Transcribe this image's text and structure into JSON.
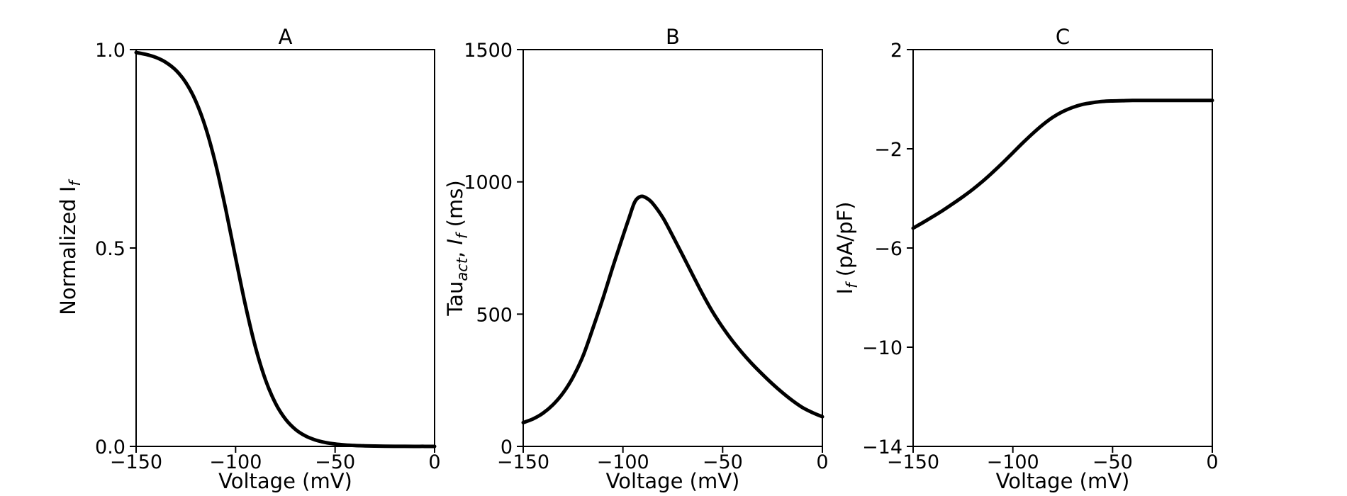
{
  "figure": {
    "background": "#ffffff",
    "axis_color": "#000000",
    "text_color": "#000000"
  },
  "chart_data": [
    {
      "type": "line",
      "title": "A",
      "xlabel": "Voltage (mV)",
      "ylabel_plain": "Normalized If",
      "ylabel_segments": [
        {
          "text": "Normalized I"
        },
        {
          "text": "f",
          "style": "sub"
        }
      ],
      "xlim": [
        -150,
        0
      ],
      "ylim": [
        0,
        1
      ],
      "xticks": {
        "values": [
          -150,
          -100,
          -50,
          0
        ],
        "labels": [
          "−150",
          "−100",
          "−50",
          "0"
        ]
      },
      "yticks": {
        "values": [
          0,
          0.5,
          1
        ],
        "labels": [
          "0.0",
          "0.5",
          "1.0"
        ]
      },
      "grid": false,
      "legend": "none",
      "series": [
        {
          "name": "normalized-if-activation",
          "color": "#000000",
          "width": 5,
          "x": [
            -150,
            -145,
            -140,
            -135,
            -130,
            -125,
            -120,
            -115,
            -110,
            -105,
            -100,
            -95,
            -90,
            -85,
            -80,
            -75,
            -70,
            -65,
            -60,
            -55,
            -50,
            -45,
            -40,
            -35,
            -30,
            -25,
            -20,
            -15,
            -10,
            -5,
            0
          ],
          "y": [
            0.9926,
            0.9879,
            0.9802,
            0.9677,
            0.9479,
            0.9168,
            0.8699,
            0.8022,
            0.7109,
            0.5987,
            0.475,
            0.3543,
            0.2497,
            0.168,
            0.1091,
            0.0691,
            0.0431,
            0.0266,
            0.0163,
            0.01,
            0.0061,
            0.0037,
            0.0022,
            0.0014,
            0.0008,
            0.0005,
            0.0003,
            0.0002,
            0.0001,
            0.0001,
            0.0
          ]
        }
      ]
    },
    {
      "type": "line",
      "title": "B",
      "xlabel": "Voltage (mV)",
      "ylabel_plain": "Tauact, If (ms)",
      "ylabel_segments": [
        {
          "text": "Tau"
        },
        {
          "text": "act",
          "style": "sub"
        },
        {
          "text": ", "
        },
        {
          "text": "I",
          "style": "italic"
        },
        {
          "text": "f",
          "style": "sub"
        },
        {
          "text": " (ms)"
        }
      ],
      "xlim": [
        -150,
        0
      ],
      "ylim": [
        0,
        1500
      ],
      "xticks": {
        "values": [
          -150,
          -100,
          -50,
          0
        ],
        "labels": [
          "−150",
          "−100",
          "−50",
          "0"
        ]
      },
      "yticks": {
        "values": [
          0,
          500,
          1000,
          1500
        ],
        "labels": [
          "0",
          "500",
          "1000",
          "1500"
        ]
      },
      "grid": false,
      "legend": "none",
      "series": [
        {
          "name": "activation-time-constant",
          "color": "#000000",
          "width": 5,
          "x": [
            -150,
            -145,
            -140,
            -135,
            -130,
            -125,
            -120,
            -115,
            -110,
            -105,
            -100,
            -97,
            -94,
            -91,
            -88,
            -85,
            -80,
            -75,
            -70,
            -65,
            -60,
            -55,
            -50,
            -45,
            -40,
            -35,
            -30,
            -25,
            -20,
            -15,
            -10,
            -5,
            0
          ],
          "y": [
            90,
            104,
            126,
            158,
            202,
            262,
            342,
            448,
            560,
            680,
            795,
            862,
            925,
            945,
            938,
            918,
            865,
            795,
            722,
            648,
            575,
            508,
            450,
            398,
            352,
            310,
            272,
            236,
            203,
            173,
            147,
            128,
            112
          ]
        }
      ]
    },
    {
      "type": "line",
      "title": "C",
      "xlabel": "Voltage (mV)",
      "ylabel_plain": "If (pA/pF)",
      "ylabel_segments": [
        {
          "text": "I"
        },
        {
          "text": "f",
          "style": "sub"
        },
        {
          "text": " (pA/pF)"
        }
      ],
      "xlim": [
        -150,
        0
      ],
      "ylim": [
        -14,
        2
      ],
      "xticks": {
        "values": [
          -150,
          -100,
          -50,
          0
        ],
        "labels": [
          "−150",
          "−100",
          "−50",
          "0"
        ]
      },
      "yticks": {
        "values": [
          2,
          -2,
          -6,
          -10,
          -14
        ],
        "labels": [
          "2",
          "−2",
          "−6",
          "−10",
          "−14"
        ]
      },
      "grid": false,
      "legend": "none",
      "series": [
        {
          "name": "if-current-density",
          "color": "#000000",
          "width": 5,
          "x": [
            -150,
            -145,
            -140,
            -135,
            -130,
            -125,
            -120,
            -115,
            -110,
            -105,
            -100,
            -95,
            -90,
            -85,
            -80,
            -75,
            -70,
            -65,
            -60,
            -55,
            -50,
            -45,
            -40,
            -35,
            -30,
            -25,
            -20,
            -15,
            -10,
            -5,
            0
          ],
          "y": [
            -5.2,
            -4.97,
            -4.73,
            -4.48,
            -4.21,
            -3.93,
            -3.63,
            -3.3,
            -2.94,
            -2.56,
            -2.16,
            -1.76,
            -1.38,
            -1.03,
            -0.73,
            -0.5,
            -0.33,
            -0.21,
            -0.14,
            -0.09,
            -0.07,
            -0.06,
            -0.05,
            -0.05,
            -0.05,
            -0.05,
            -0.05,
            -0.05,
            -0.05,
            -0.05,
            -0.05
          ]
        }
      ]
    }
  ]
}
